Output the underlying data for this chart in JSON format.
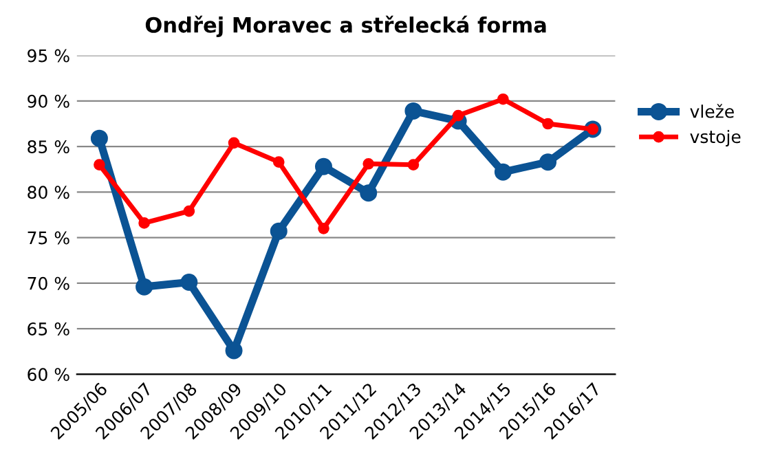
{
  "chart_data": {
    "type": "line",
    "title": "Ondřej Moravec a střelecká forma",
    "categories": [
      "2005/06",
      "2006/07",
      "2007/08",
      "2008/09",
      "2009/10",
      "2010/11",
      "2011/12",
      "2012/13",
      "2013/14",
      "2014/15",
      "2015/16",
      "2016/17"
    ],
    "series": [
      {
        "name": "vleže",
        "color": "#0b5394",
        "values": [
          85.9,
          69.6,
          70.1,
          62.6,
          75.7,
          82.8,
          79.9,
          88.9,
          87.8,
          82.2,
          83.3,
          86.9
        ]
      },
      {
        "name": "vstoje",
        "color": "#ff0000",
        "values": [
          83.0,
          76.6,
          77.9,
          85.4,
          83.3,
          76.0,
          83.1,
          83.0,
          88.4,
          90.2,
          87.5,
          86.9
        ]
      }
    ],
    "ylim": [
      60,
      95
    ],
    "yticks": [
      {
        "value": 60,
        "label": "60 %"
      },
      {
        "value": 65,
        "label": "65 %"
      },
      {
        "value": 70,
        "label": "70 %"
      },
      {
        "value": 75,
        "label": "75 %"
      },
      {
        "value": 80,
        "label": "80 %"
      },
      {
        "value": 85,
        "label": "85 %"
      },
      {
        "value": 90,
        "label": "90 %"
      },
      {
        "value": 95,
        "label": "95 %"
      }
    ],
    "grid": "y",
    "legend": "right",
    "marker": "circle",
    "line_style": "solid"
  }
}
